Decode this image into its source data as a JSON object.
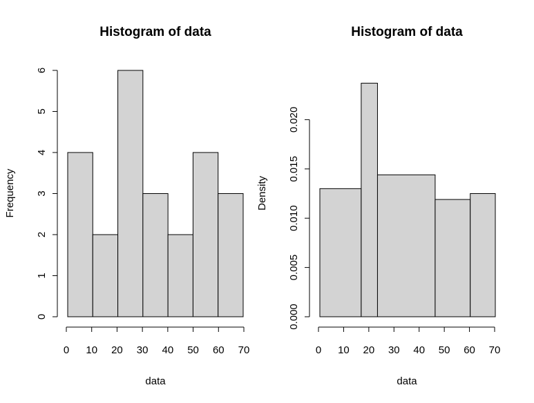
{
  "figure": {
    "background": "#ffffff",
    "bar_fill": "#d3d3d3",
    "bar_stroke": "#000000"
  },
  "chart_data": [
    {
      "type": "bar",
      "subtype": "histogram",
      "title": "Histogram of data",
      "xlabel": "data",
      "ylabel": "Frequency",
      "breaks": [
        0,
        10,
        20,
        30,
        40,
        50,
        60,
        70
      ],
      "values": [
        4,
        2,
        6,
        3,
        2,
        4,
        3
      ],
      "xlim": [
        0,
        70
      ],
      "ylim": [
        0,
        6
      ],
      "x_ticks": [
        0,
        10,
        20,
        30,
        40,
        50,
        60,
        70
      ],
      "y_ticks": [
        0,
        1,
        2,
        3,
        4,
        5,
        6
      ],
      "x_tick_labels": [
        "0",
        "10",
        "20",
        "30",
        "40",
        "50",
        "60",
        "70"
      ],
      "y_tick_labels": [
        "0",
        "1",
        "2",
        "3",
        "4",
        "5",
        "6"
      ],
      "grid": false
    },
    {
      "type": "bar",
      "subtype": "histogram",
      "title": "Histogram of data",
      "xlabel": "data",
      "ylabel": "Density",
      "breaks": [
        0,
        16.5,
        23,
        46,
        60,
        70
      ],
      "values": [
        0.013,
        0.0237,
        0.0144,
        0.0119,
        0.0125
      ],
      "xlim": [
        0,
        70
      ],
      "ylim": [
        0,
        0.025
      ],
      "x_ticks": [
        0,
        10,
        20,
        30,
        40,
        50,
        60,
        70
      ],
      "y_ticks": [
        0,
        0.005,
        0.01,
        0.015,
        0.02
      ],
      "x_tick_labels": [
        "0",
        "10",
        "20",
        "30",
        "40",
        "50",
        "60",
        "70"
      ],
      "y_tick_labels": [
        "0.000",
        "0.005",
        "0.010",
        "0.015",
        "0.020"
      ],
      "grid": false
    }
  ]
}
